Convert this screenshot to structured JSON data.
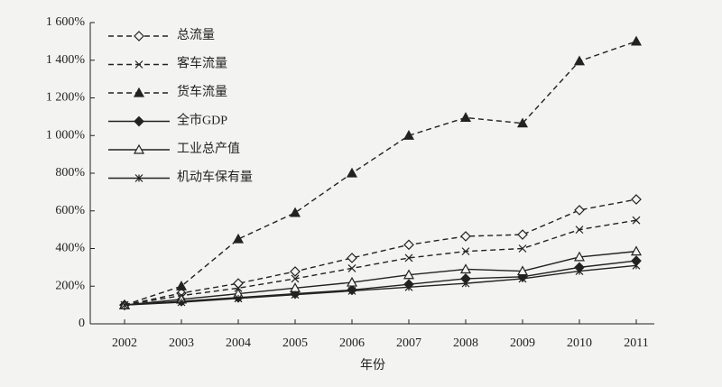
{
  "chart_data": {
    "type": "line",
    "x_label": "年份",
    "categories": [
      "2002",
      "2003",
      "2004",
      "2005",
      "2006",
      "2007",
      "2008",
      "2009",
      "2010",
      "2011"
    ],
    "ylim": [
      0,
      1600
    ],
    "yticks": [
      0,
      {
        "value": 200,
        "label": "200%"
      },
      {
        "value": 400,
        "label": "400%"
      },
      {
        "value": 600,
        "label": "600%"
      },
      {
        "value": 800,
        "label": "800%"
      },
      {
        "value": 1000,
        "label": "1 000%"
      },
      {
        "value": 1200,
        "label": "1 200%"
      },
      {
        "value": 1400,
        "label": "1 400%"
      },
      {
        "value": 1600,
        "label": "1 600%"
      }
    ],
    "legend": "upper left",
    "series": [
      {
        "name": "总流量",
        "color": "#222222",
        "marker": "diamond-open",
        "linestyle": "dashed",
        "values": [
          100,
          163,
          215,
          278,
          350,
          420,
          465,
          474,
          604,
          661
        ]
      },
      {
        "name": "客车流量",
        "color": "#222222",
        "marker": "x",
        "linestyle": "dashed",
        "values": [
          100,
          150,
          190,
          240,
          295,
          350,
          385,
          400,
          500,
          550
        ]
      },
      {
        "name": "货车流量",
        "color": "#222222",
        "marker": "triangle-filled",
        "linestyle": "dashed",
        "values": [
          100,
          200,
          450,
          590,
          800,
          1000,
          1095,
          1065,
          1395,
          1500
        ]
      },
      {
        "name": "全市GDP",
        "color": "#222222",
        "marker": "diamond-filled",
        "linestyle": "solid",
        "values": [
          100,
          120,
          140,
          160,
          180,
          210,
          240,
          250,
          300,
          335
        ]
      },
      {
        "name": "工业总产值",
        "color": "#222222",
        "marker": "triangle-open",
        "linestyle": "solid",
        "values": [
          100,
          130,
          160,
          190,
          220,
          260,
          290,
          280,
          355,
          385
        ]
      },
      {
        "name": "机动车保有量",
        "color": "#222222",
        "marker": "star",
        "linestyle": "solid",
        "values": [
          100,
          115,
          135,
          155,
          175,
          195,
          215,
          240,
          280,
          310
        ]
      }
    ]
  }
}
